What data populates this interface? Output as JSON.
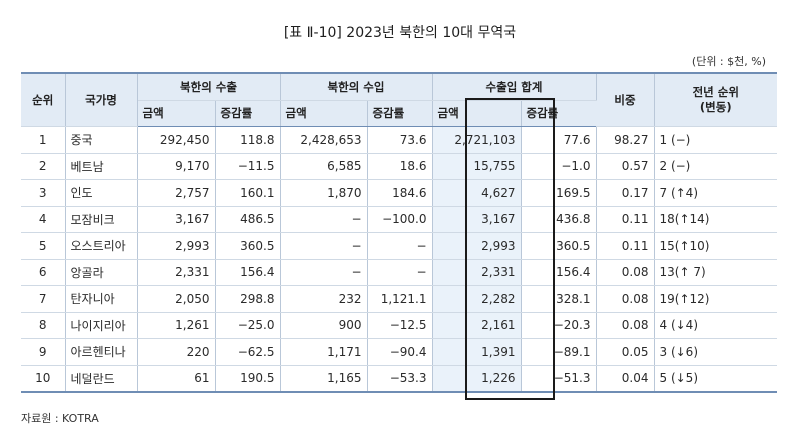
{
  "title": "[표 Ⅱ-10] 2023년 북한의 10대 무역국",
  "unit": "(단위 : $천, %)",
  "headers": {
    "rank": "순위",
    "country": "국가명",
    "export": "북한의 수출",
    "import": "북한의 수입",
    "total": "수출입 합계",
    "share": "비중",
    "prev_rank": "전년 순위\n(변동)",
    "amount": "금액",
    "growth": "증감률"
  },
  "rows": [
    {
      "rank": "1",
      "country": "중국",
      "exp_amt": "292,450",
      "exp_growth": "118.8",
      "imp_amt": "2,428,653",
      "imp_growth": "73.6",
      "tot_amt": "2,721,103",
      "tot_growth": "77.6",
      "share": "98.27",
      "prev": "1 (−)"
    },
    {
      "rank": "2",
      "country": "베트남",
      "exp_amt": "9,170",
      "exp_growth": "−11.5",
      "imp_amt": "6,585",
      "imp_growth": "18.6",
      "tot_amt": "15,755",
      "tot_growth": "−1.0",
      "share": "0.57",
      "prev": "2 (−)"
    },
    {
      "rank": "3",
      "country": "인도",
      "exp_amt": "2,757",
      "exp_growth": "160.1",
      "imp_amt": "1,870",
      "imp_growth": "184.6",
      "tot_amt": "4,627",
      "tot_growth": "169.5",
      "share": "0.17",
      "prev": "7 (↑4)"
    },
    {
      "rank": "4",
      "country": "모잠비크",
      "exp_amt": "3,167",
      "exp_growth": "486.5",
      "imp_amt": "−",
      "imp_growth": "−100.0",
      "tot_amt": "3,167",
      "tot_growth": "436.8",
      "share": "0.11",
      "prev": "18(↑14)"
    },
    {
      "rank": "5",
      "country": "오스트리아",
      "exp_amt": "2,993",
      "exp_growth": "360.5",
      "imp_amt": "−",
      "imp_growth": "−",
      "tot_amt": "2,993",
      "tot_growth": "360.5",
      "share": "0.11",
      "prev": "15(↑10)"
    },
    {
      "rank": "6",
      "country": "앙골라",
      "exp_amt": "2,331",
      "exp_growth": "156.4",
      "imp_amt": "−",
      "imp_growth": "−",
      "tot_amt": "2,331",
      "tot_growth": "156.4",
      "share": "0.08",
      "prev": "13(↑ 7)"
    },
    {
      "rank": "7",
      "country": "탄자니아",
      "exp_amt": "2,050",
      "exp_growth": "298.8",
      "imp_amt": "232",
      "imp_growth": "1,121.1",
      "tot_amt": "2,282",
      "tot_growth": "328.1",
      "share": "0.08",
      "prev": "19(↑12)"
    },
    {
      "rank": "8",
      "country": "나이지리아",
      "exp_amt": "1,261",
      "exp_growth": "−25.0",
      "imp_amt": "900",
      "imp_growth": "−12.5",
      "tot_amt": "2,161",
      "tot_growth": "−20.3",
      "share": "0.08",
      "prev": "4 (↓4)"
    },
    {
      "rank": "9",
      "country": "아르헨티나",
      "exp_amt": "220",
      "exp_growth": "−62.5",
      "imp_amt": "1,171",
      "imp_growth": "−90.4",
      "tot_amt": "1,391",
      "tot_growth": "−89.1",
      "share": "0.05",
      "prev": "3 (↓6)"
    },
    {
      "rank": "10",
      "country": "네덜란드",
      "exp_amt": "61",
      "exp_growth": "190.5",
      "imp_amt": "1,165",
      "imp_growth": "−53.3",
      "tot_amt": "1,226",
      "tot_growth": "−51.3",
      "share": "0.04",
      "prev": "5 (↓5)"
    }
  ],
  "source": "자료원 : KOTRA",
  "colors": {
    "header_bg": "#e2ebf5",
    "rule": "#6f8db4",
    "highlight_border": "#1a1a1a"
  }
}
